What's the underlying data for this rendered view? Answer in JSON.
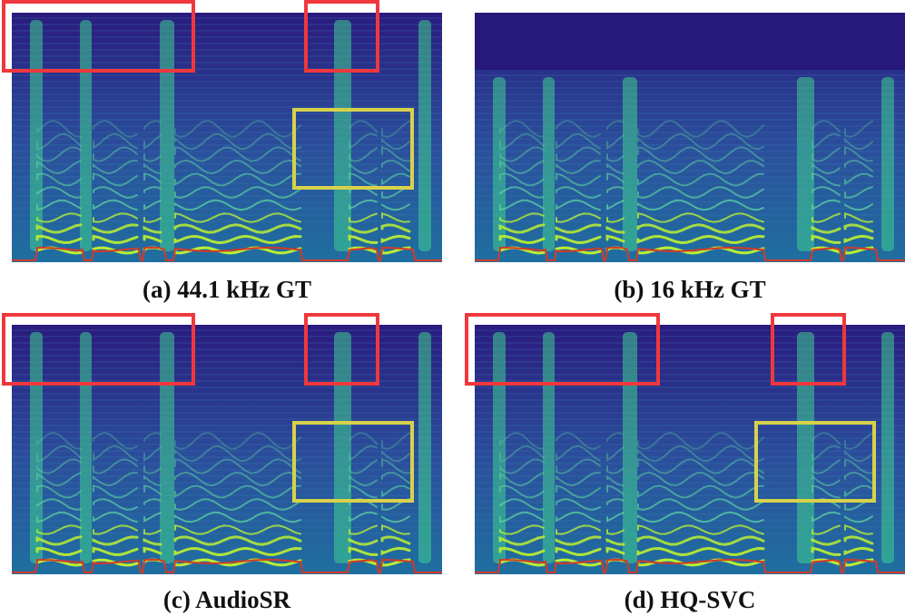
{
  "figure": {
    "panels": [
      {
        "id": "a",
        "caption": "(a) 44.1 kHz GT",
        "cutoff": 0.0,
        "highlight_red": 2,
        "highlight_yellow": 1
      },
      {
        "id": "b",
        "caption": "(b) 16 kHz GT",
        "cutoff": 0.23,
        "highlight_red": 0,
        "highlight_yellow": 0
      },
      {
        "id": "c",
        "caption": "(c) AudioSR",
        "cutoff": 0.0,
        "highlight_red": 2,
        "highlight_yellow": 1
      },
      {
        "id": "d",
        "caption": "(d) HQ-SVC",
        "cutoff": 0.0,
        "highlight_red": 2,
        "highlight_yellow": 1
      }
    ],
    "colors": {
      "background": "#27197a",
      "harmonic": "#b9ee34",
      "energy": "#3fcf8f",
      "f0_line": "#d23a2a",
      "highlight_red": "#f0383c",
      "highlight_yellow": "#d7d24a"
    }
  }
}
